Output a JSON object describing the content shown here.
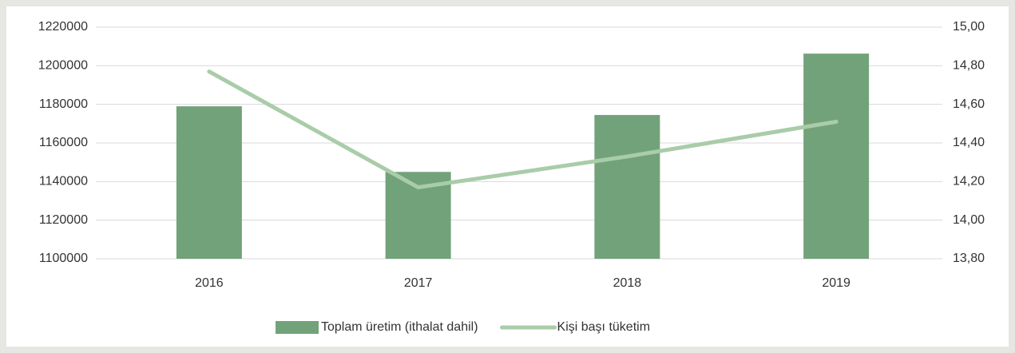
{
  "chart_data": {
    "type": "bar-line",
    "categories": [
      "2016",
      "2017",
      "2018",
      "2019"
    ],
    "series": [
      {
        "name": "Toplam üretim (ithalat dahil)",
        "type": "bar",
        "color": "#72a27a",
        "axis": "y",
        "values": [
          1179000,
          1145000,
          1174500,
          1206300
        ]
      },
      {
        "name": "Kişi başı tüketim",
        "type": "line",
        "color": "#a9cca9",
        "axis": "y2",
        "values": [
          14.77,
          14.17,
          14.33,
          14.51
        ]
      }
    ],
    "ylim": [
      1100000,
      1220000
    ],
    "yticks": [
      1100000,
      1120000,
      1140000,
      1160000,
      1180000,
      1200000,
      1220000
    ],
    "y2lim": [
      13.8,
      15.0
    ],
    "y2ticks": [
      {
        "value": 13.8,
        "label": "13,80"
      },
      {
        "value": 14.0,
        "label": "14,00"
      },
      {
        "value": 14.2,
        "label": "14,20"
      },
      {
        "value": 14.4,
        "label": "14,40"
      },
      {
        "value": 14.6,
        "label": "14,60"
      },
      {
        "value": 14.8,
        "label": "14,80"
      },
      {
        "value": 15.0,
        "label": "15,00"
      }
    ],
    "grid": true,
    "legend": "bottom"
  }
}
